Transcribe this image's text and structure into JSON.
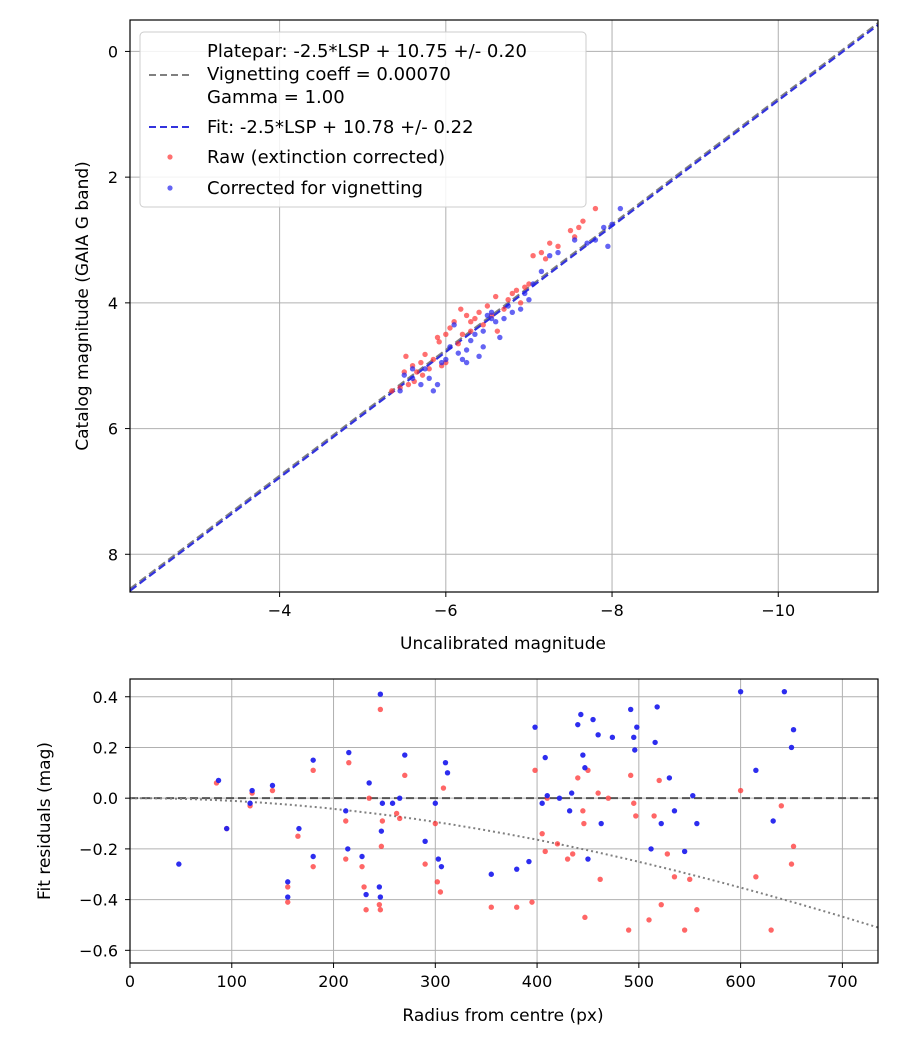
{
  "chart_data": [
    {
      "type": "scatter",
      "name": "calibration",
      "xlabel": "Uncalibrated magnitude",
      "ylabel": "Catalog magnitude (GAIA G band)",
      "xlim": [
        -2.2,
        -11.2
      ],
      "ylim": [
        8.6,
        -0.5
      ],
      "xticks": [
        -4,
        -6,
        -8,
        -10
      ],
      "xtick_labels": [
        "−4",
        "−6",
        "−8",
        "−10"
      ],
      "yticks": [
        0,
        2,
        4,
        6,
        8
      ],
      "ytick_labels": [
        "0",
        "2",
        "4",
        "6",
        "8"
      ],
      "grid": true,
      "legend_position": "top-left",
      "legend": {
        "platepar_lines": [
          "Platepar: -2.5*LSP + 10.75 +/- 0.20",
          "Vignetting coeff = 0.00070",
          "Gamma = 1.00"
        ],
        "fit": "Fit: -2.5*LSP + 10.78 +/- 0.22",
        "raw": "Raw (extinction corrected)",
        "corrected": "Corrected for vignetting"
      },
      "lines": [
        {
          "name": "Platepar",
          "slope": 1.0,
          "intercept": 10.75,
          "color": "#808080",
          "dash": "dashed"
        },
        {
          "name": "Fit",
          "slope": 1.0,
          "intercept": 10.78,
          "color": "#3333dd",
          "dash": "dashed"
        }
      ],
      "series": [
        {
          "name": "Raw (extinction corrected)",
          "color": "#ff3333",
          "points": [
            [
              -5.45,
              5.35
            ],
            [
              -5.5,
              5.1
            ],
            [
              -5.52,
              4.85
            ],
            [
              -5.6,
              5.0
            ],
            [
              -5.62,
              5.25
            ],
            [
              -5.7,
              4.95
            ],
            [
              -5.72,
              5.15
            ],
            [
              -5.75,
              4.82
            ],
            [
              -5.8,
              5.05
            ],
            [
              -5.85,
              4.9
            ],
            [
              -5.9,
              4.55
            ],
            [
              -5.92,
              4.62
            ],
            [
              -5.95,
              5.0
            ],
            [
              -6.0,
              4.5
            ],
            [
              -6.05,
              4.4
            ],
            [
              -6.1,
              4.3
            ],
            [
              -6.15,
              4.65
            ],
            [
              -6.18,
              4.1
            ],
            [
              -6.2,
              4.5
            ],
            [
              -6.25,
              4.2
            ],
            [
              -6.3,
              4.3
            ],
            [
              -6.35,
              4.25
            ],
            [
              -6.4,
              4.15
            ],
            [
              -6.45,
              4.35
            ],
            [
              -6.5,
              4.05
            ],
            [
              -6.55,
              4.2
            ],
            [
              -6.6,
              3.9
            ],
            [
              -6.62,
              4.45
            ],
            [
              -6.7,
              4.1
            ],
            [
              -6.75,
              3.95
            ],
            [
              -6.85,
              3.8
            ],
            [
              -6.9,
              4.0
            ],
            [
              -6.95,
              3.75
            ],
            [
              -7.0,
              3.7
            ],
            [
              -7.05,
              3.25
            ],
            [
              -7.15,
              3.2
            ],
            [
              -7.25,
              3.05
            ],
            [
              -7.35,
              3.1
            ],
            [
              -7.5,
              2.85
            ],
            [
              -7.55,
              2.95
            ],
            [
              -7.6,
              2.8
            ],
            [
              -7.8,
              2.5
            ],
            [
              -5.35,
              5.4
            ],
            [
              -6.0,
              4.95
            ],
            [
              -6.3,
              4.45
            ],
            [
              -5.65,
              5.1
            ],
            [
              -5.55,
              5.3
            ],
            [
              -6.8,
              3.85
            ],
            [
              -7.2,
              3.3
            ],
            [
              -7.65,
              2.7
            ]
          ]
        },
        {
          "name": "Corrected for vignetting",
          "color": "#2222ee",
          "points": [
            [
              -5.45,
              5.4
            ],
            [
              -5.5,
              5.15
            ],
            [
              -5.6,
              5.2
            ],
            [
              -5.7,
              5.3
            ],
            [
              -5.75,
              5.05
            ],
            [
              -5.8,
              5.2
            ],
            [
              -5.85,
              5.4
            ],
            [
              -5.9,
              5.3
            ],
            [
              -5.95,
              4.95
            ],
            [
              -6.0,
              4.9
            ],
            [
              -6.05,
              4.7
            ],
            [
              -6.1,
              4.35
            ],
            [
              -6.15,
              4.8
            ],
            [
              -6.2,
              4.9
            ],
            [
              -6.25,
              4.75
            ],
            [
              -6.3,
              4.6
            ],
            [
              -6.35,
              4.5
            ],
            [
              -6.4,
              4.85
            ],
            [
              -6.45,
              4.7
            ],
            [
              -6.5,
              4.2
            ],
            [
              -6.55,
              4.15
            ],
            [
              -6.6,
              4.3
            ],
            [
              -6.65,
              4.55
            ],
            [
              -6.7,
              4.25
            ],
            [
              -6.75,
              4.05
            ],
            [
              -6.8,
              4.15
            ],
            [
              -6.9,
              4.1
            ],
            [
              -6.95,
              3.85
            ],
            [
              -7.0,
              3.95
            ],
            [
              -7.05,
              3.7
            ],
            [
              -7.15,
              3.5
            ],
            [
              -7.25,
              3.25
            ],
            [
              -7.35,
              3.2
            ],
            [
              -7.55,
              3.0
            ],
            [
              -7.8,
              3.0
            ],
            [
              -7.9,
              2.8
            ],
            [
              -7.95,
              3.1
            ],
            [
              -8.1,
              2.5
            ],
            [
              -8.0,
              2.75
            ],
            [
              -7.7,
              3.05
            ],
            [
              -6.55,
              4.25
            ],
            [
              -5.6,
              5.05
            ],
            [
              -6.25,
              4.95
            ],
            [
              -6.45,
              4.45
            ]
          ]
        }
      ]
    },
    {
      "type": "scatter",
      "name": "residuals",
      "xlabel": "Radius from centre (px)",
      "ylabel": "Fit residuals (mag)",
      "xlim": [
        0,
        735
      ],
      "ylim": [
        -0.65,
        0.47
      ],
      "xticks": [
        0,
        100,
        200,
        300,
        400,
        500,
        600,
        700
      ],
      "xtick_labels": [
        "0",
        "100",
        "200",
        "300",
        "400",
        "500",
        "600",
        "700"
      ],
      "yticks": [
        0.4,
        0.2,
        0.0,
        -0.2,
        -0.4,
        -0.6
      ],
      "ytick_labels": [
        "0.4",
        "0.2",
        "0.0",
        "−0.2",
        "−0.4",
        "−0.6"
      ],
      "grid": true,
      "zero_line": {
        "y": 0.0,
        "color": "#555555",
        "dash": "dashed"
      },
      "vignetting_curve": {
        "coeff": 0.0007,
        "intercept_offset": 0.03,
        "color": "#808080",
        "dash": "dotted"
      },
      "series": [
        {
          "name": "Raw (extinction corrected)",
          "color": "#ff3333",
          "points": [
            [
              85,
              0.06
            ],
            [
              95,
              -0.12
            ],
            [
              118,
              -0.03
            ],
            [
              120,
              0.02
            ],
            [
              140,
              0.03
            ],
            [
              155,
              -0.35
            ],
            [
              155,
              -0.41
            ],
            [
              165,
              -0.15
            ],
            [
              180,
              0.11
            ],
            [
              180,
              -0.27
            ],
            [
              212,
              -0.09
            ],
            [
              212,
              -0.24
            ],
            [
              215,
              0.14
            ],
            [
              228,
              -0.27
            ],
            [
              230,
              -0.35
            ],
            [
              232,
              -0.44
            ],
            [
              235,
              0.0
            ],
            [
              245,
              -0.42
            ],
            [
              246,
              -0.44
            ],
            [
              246,
              0.35
            ],
            [
              247,
              -0.19
            ],
            [
              248,
              -0.09
            ],
            [
              262,
              -0.06
            ],
            [
              265,
              -0.08
            ],
            [
              270,
              0.09
            ],
            [
              290,
              -0.26
            ],
            [
              300,
              -0.1
            ],
            [
              302,
              -0.33
            ],
            [
              305,
              -0.37
            ],
            [
              308,
              0.04
            ],
            [
              355,
              -0.43
            ],
            [
              380,
              -0.43
            ],
            [
              395,
              -0.41
            ],
            [
              398,
              0.11
            ],
            [
              405,
              -0.14
            ],
            [
              408,
              -0.21
            ],
            [
              410,
              0.0
            ],
            [
              420,
              -0.18
            ],
            [
              430,
              -0.24
            ],
            [
              435,
              -0.22
            ],
            [
              440,
              0.08
            ],
            [
              445,
              -0.05
            ],
            [
              446,
              -0.1
            ],
            [
              447,
              -0.47
            ],
            [
              450,
              0.11
            ],
            [
              460,
              0.02
            ],
            [
              462,
              -0.32
            ],
            [
              470,
              0.0
            ],
            [
              490,
              -0.52
            ],
            [
              492,
              0.09
            ],
            [
              495,
              -0.02
            ],
            [
              497,
              -0.07
            ],
            [
              510,
              -0.48
            ],
            [
              515,
              -0.07
            ],
            [
              520,
              0.07
            ],
            [
              522,
              -0.42
            ],
            [
              528,
              -0.22
            ],
            [
              535,
              -0.31
            ],
            [
              545,
              -0.52
            ],
            [
              550,
              -0.32
            ],
            [
              557,
              -0.44
            ],
            [
              600,
              0.03
            ],
            [
              615,
              -0.31
            ],
            [
              630,
              -0.52
            ],
            [
              640,
              -0.03
            ],
            [
              650,
              -0.26
            ],
            [
              652,
              -0.19
            ]
          ]
        },
        {
          "name": "Corrected for vignetting",
          "color": "#2222ee",
          "points": [
            [
              48,
              -0.26
            ],
            [
              87,
              0.07
            ],
            [
              95,
              -0.12
            ],
            [
              118,
              -0.02
            ],
            [
              120,
              0.03
            ],
            [
              140,
              0.05
            ],
            [
              155,
              -0.33
            ],
            [
              155,
              -0.39
            ],
            [
              166,
              -0.12
            ],
            [
              180,
              0.15
            ],
            [
              180,
              -0.23
            ],
            [
              212,
              -0.05
            ],
            [
              214,
              -0.2
            ],
            [
              215,
              0.18
            ],
            [
              228,
              -0.23
            ],
            [
              232,
              -0.38
            ],
            [
              235,
              0.06
            ],
            [
              245,
              -0.35
            ],
            [
              246,
              -0.39
            ],
            [
              246,
              0.41
            ],
            [
              247,
              -0.13
            ],
            [
              248,
              -0.02
            ],
            [
              258,
              -0.02
            ],
            [
              265,
              0.0
            ],
            [
              270,
              0.17
            ],
            [
              290,
              -0.17
            ],
            [
              300,
              -0.02
            ],
            [
              303,
              -0.24
            ],
            [
              306,
              -0.27
            ],
            [
              310,
              0.14
            ],
            [
              312,
              0.1
            ],
            [
              355,
              -0.3
            ],
            [
              380,
              -0.28
            ],
            [
              392,
              -0.25
            ],
            [
              398,
              0.28
            ],
            [
              405,
              -0.02
            ],
            [
              408,
              0.16
            ],
            [
              410,
              0.01
            ],
            [
              422,
              0.0
            ],
            [
              432,
              -0.05
            ],
            [
              434,
              0.02
            ],
            [
              440,
              0.29
            ],
            [
              443,
              0.33
            ],
            [
              445,
              0.17
            ],
            [
              447,
              0.12
            ],
            [
              450,
              -0.24
            ],
            [
              455,
              0.31
            ],
            [
              460,
              0.25
            ],
            [
              463,
              -0.1
            ],
            [
              474,
              0.24
            ],
            [
              492,
              0.35
            ],
            [
              495,
              0.24
            ],
            [
              496,
              0.19
            ],
            [
              498,
              0.28
            ],
            [
              512,
              -0.2
            ],
            [
              516,
              0.22
            ],
            [
              518,
              0.36
            ],
            [
              522,
              -0.1
            ],
            [
              530,
              0.08
            ],
            [
              535,
              -0.05
            ],
            [
              545,
              -0.21
            ],
            [
              553,
              0.01
            ],
            [
              557,
              -0.1
            ],
            [
              600,
              0.42
            ],
            [
              615,
              0.11
            ],
            [
              632,
              -0.09
            ],
            [
              643,
              0.42
            ],
            [
              650,
              0.2
            ],
            [
              652,
              0.27
            ]
          ]
        }
      ]
    }
  ]
}
